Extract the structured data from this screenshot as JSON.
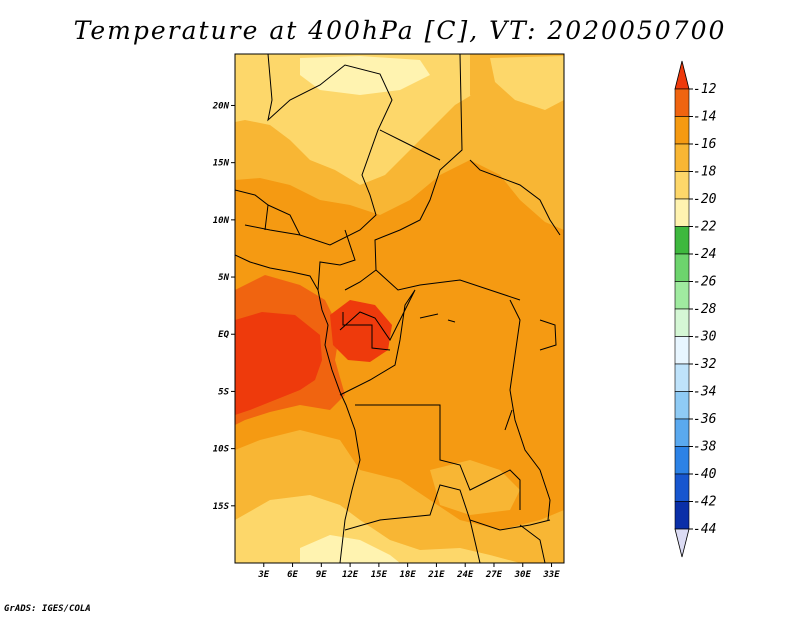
{
  "title": "Temperature at 400hPa [C], VT: 2020050700",
  "credit": "GrADS: IGES/COLA",
  "map": {
    "lat_range": [
      -20,
      24.5
    ],
    "lon_range": [
      0,
      34.3
    ],
    "lat_ticks": [
      {
        "value": 20,
        "label": "20N"
      },
      {
        "value": 15,
        "label": "15N"
      },
      {
        "value": 10,
        "label": "10N"
      },
      {
        "value": 5,
        "label": "5N"
      },
      {
        "value": 0,
        "label": "EQ"
      },
      {
        "value": -5,
        "label": "5S"
      },
      {
        "value": -10,
        "label": "10S"
      },
      {
        "value": -15,
        "label": "15S"
      }
    ],
    "lon_ticks": [
      {
        "value": 3,
        "label": "3E"
      },
      {
        "value": 6,
        "label": "6E"
      },
      {
        "value": 9,
        "label": "9E"
      },
      {
        "value": 12,
        "label": "12E"
      },
      {
        "value": 15,
        "label": "15E"
      },
      {
        "value": 18,
        "label": "18E"
      },
      {
        "value": 21,
        "label": "21E"
      },
      {
        "value": 24,
        "label": "24E"
      },
      {
        "value": 27,
        "label": "27E"
      },
      {
        "value": 30,
        "label": "30E"
      },
      {
        "value": 33,
        "label": "33E"
      }
    ]
  },
  "colorbar": {
    "labels": [
      "-12",
      "-14",
      "-16",
      "-18",
      "-20",
      "-22",
      "-24",
      "-26",
      "-28",
      "-30",
      "-32",
      "-34",
      "-36",
      "-38",
      "-40",
      "-42",
      "-44"
    ],
    "colors": [
      "#ee3a0c",
      "#f06410",
      "#f59a12",
      "#f8b634",
      "#fdd76a",
      "#fff3b0",
      "#3eb83e",
      "#6dd46d",
      "#a0eba0",
      "#d5f7d5",
      "#e8f6ff",
      "#bfe3fb",
      "#8fcbf5",
      "#5aa9ef",
      "#2c82e6",
      "#1756cf",
      "#0a2fa8",
      "#061870",
      "#dcdcf4"
    ]
  }
}
